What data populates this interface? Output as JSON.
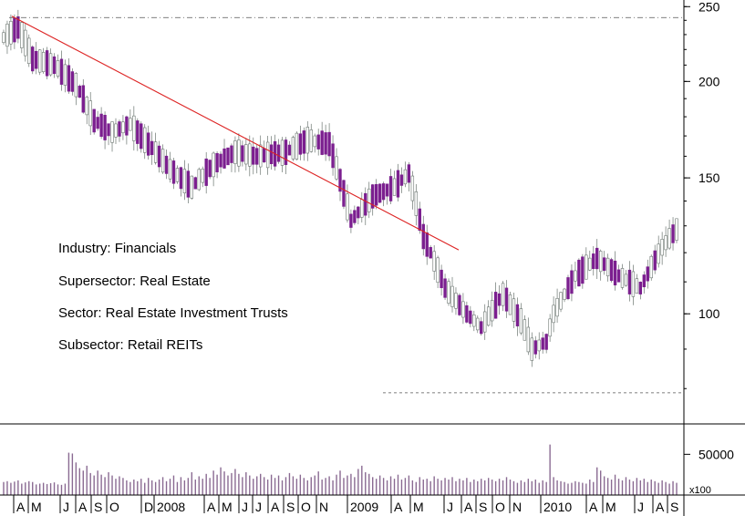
{
  "colors": {
    "down_fill": "#7b1f8f",
    "up_fill": "#ffffff",
    "candle_outline": "#6b7570",
    "trendline": "#dd2222",
    "volume": "#8a6a92",
    "axis": "#000000",
    "dashline": "#555555"
  },
  "chart_data": {
    "type": "candlestick",
    "scale": "log",
    "ylim": [
      72,
      255
    ],
    "y_ticks": [
      {
        "value": 250,
        "label": "250"
      },
      {
        "value": 200,
        "label": "200"
      },
      {
        "value": 150,
        "label": "150"
      },
      {
        "value": 100,
        "label": "100"
      }
    ],
    "x_labels": [
      "A",
      "M",
      "J",
      "A",
      "S",
      "O",
      "D",
      "2008",
      "A",
      "M",
      "J",
      "J",
      "A",
      "S",
      "O",
      "N",
      "2009",
      "A",
      "M",
      "J",
      "A",
      "S",
      "O",
      "N",
      "2010",
      "A",
      "M",
      "J",
      "A",
      "S"
    ],
    "annotations": [
      {
        "label": "Industry: Financials"
      },
      {
        "label": "Supersector: Real Estate"
      },
      {
        "label": "Sector: Real Estate Investment Trusts"
      },
      {
        "label": "Subsector: Retail REITs"
      }
    ],
    "reference_lines": [
      {
        "kind": "resistance",
        "value": 242
      },
      {
        "kind": "support",
        "value": 79
      }
    ],
    "trendline": {
      "start_value": 243,
      "end_value": 121
    },
    "volume": {
      "tick_label": "50000",
      "tick_value": 50000,
      "multiplier_label": "x100",
      "values": [
        16000,
        17000,
        15000,
        16500,
        18000,
        14000,
        15500,
        17000,
        16000,
        13000,
        14000,
        15000,
        13500,
        14500,
        15500,
        13000,
        12500,
        14000,
        52000,
        51000,
        40000,
        33000,
        30000,
        36000,
        27000,
        24000,
        30000,
        25000,
        22000,
        28000,
        24000,
        20000,
        23000,
        21000,
        18000,
        16000,
        19000,
        17000,
        20000,
        15000,
        21000,
        18000,
        16000,
        19000,
        22000,
        17000,
        20000,
        24000,
        16000,
        22000,
        18000,
        21000,
        28000,
        19000,
        23000,
        20000,
        26000,
        21000,
        30000,
        25000,
        34000,
        29000,
        24000,
        27000,
        32000,
        26000,
        22000,
        28000,
        24000,
        20000,
        23000,
        26000,
        22000,
        19000,
        25000,
        21000,
        24000,
        18000,
        22000,
        27000,
        23000,
        20000,
        25000,
        21000,
        18000,
        22000,
        24000,
        29000,
        19000,
        21000,
        23000,
        18000,
        25000,
        30000,
        21000,
        24000,
        26000,
        22000,
        32000,
        36000,
        28000,
        26000,
        22000,
        20000,
        24000,
        21000,
        18000,
        23000,
        20000,
        25000,
        19000,
        21000,
        24000,
        18000,
        16000,
        22000,
        19000,
        20000,
        17000,
        23000,
        20000,
        18000,
        21000,
        19000,
        22000,
        17000,
        20000,
        18000,
        21000,
        16000,
        19000,
        17000,
        20000,
        18000,
        21000,
        19000,
        17000,
        20000,
        18000,
        22000,
        19000,
        17000,
        15000,
        18000,
        16000,
        20000,
        17000,
        19000,
        15000,
        18000,
        16000,
        62000,
        22000,
        18000,
        17000,
        16000,
        14000,
        15000,
        17000,
        16000,
        15000,
        14000,
        19000,
        16000,
        34000,
        30000,
        23000,
        21000,
        19000,
        25000,
        20000,
        18000,
        22000,
        19000,
        17000,
        21000,
        18000,
        20000,
        16000,
        19000,
        17000,
        15000,
        18000,
        16000,
        14000,
        17000,
        15000
      ]
    }
  }
}
